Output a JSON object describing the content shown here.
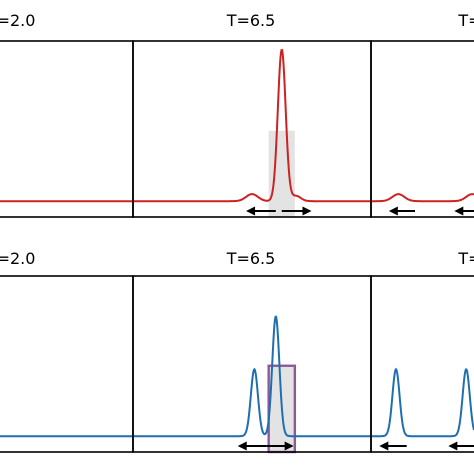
{
  "chart_data": [
    {
      "type": "line",
      "row": "top",
      "color": "#cc2222",
      "panels": [
        {
          "title": "=2.0",
          "bars": [
            {
              "x": 0.15,
              "w": 0.22,
              "h": 0.49,
              "outline": false
            }
          ],
          "baseline": 0.09,
          "peaks": [],
          "arrows": []
        },
        {
          "title": "T=6.5",
          "bars": [
            {
              "x": 1.25,
              "w": 0.22,
              "h": 0.49,
              "outline": false
            }
          ],
          "baseline": 0.09,
          "peaks": [
            {
              "x": 1.0,
              "h": 0.04,
              "s": 0.05
            },
            {
              "x": 1.25,
              "h": 0.86,
              "s": 0.033
            },
            {
              "x": 1.37,
              "h": 0.03,
              "s": 0.04
            }
          ],
          "arrows": [
            {
              "dir": "left",
              "from": 1.2,
              "to": 0.95
            },
            {
              "dir": "right",
              "from": 1.25,
              "to": 1.5
            }
          ]
        },
        {
          "title": "T=",
          "bars": [],
          "baseline": 0.09,
          "peaks": [
            {
              "x": 0.23,
              "h": 0.04,
              "s": 0.05
            },
            {
              "x": 0.85,
              "h": 0.04,
              "s": 0.05
            }
          ],
          "arrows": [
            {
              "dir": "left",
              "from": 0.37,
              "to": 0.15
            },
            {
              "dir": "left",
              "from": 0.9,
              "to": 0.7
            }
          ]
        }
      ]
    },
    {
      "type": "line",
      "row": "bottom",
      "color": "#1f6fb0",
      "panels": [
        {
          "title": "=2.0",
          "bars": [
            {
              "x": 0.12,
              "w": 0.22,
              "h": 0.49,
              "outline": true
            }
          ],
          "baseline": 0.09,
          "peaks": [],
          "arrows": []
        },
        {
          "title": "T=6.5",
          "bars": [
            {
              "x": 1.25,
              "w": 0.22,
              "h": 0.49,
              "outline": true
            }
          ],
          "baseline": 0.09,
          "peaks": [
            {
              "x": 1.02,
              "h": 0.38,
              "s": 0.03
            },
            {
              "x": 1.2,
              "h": 0.68,
              "s": 0.03
            }
          ],
          "arrows": [
            {
              "dir": "left",
              "from": 1.12,
              "to": 0.88
            },
            {
              "dir": "right",
              "from": 1.12,
              "to": 1.35
            }
          ]
        },
        {
          "title": "T=",
          "bars": [],
          "baseline": 0.09,
          "peaks": [
            {
              "x": 0.21,
              "h": 0.38,
              "s": 0.03
            },
            {
              "x": 0.8,
              "h": 0.38,
              "s": 0.03
            }
          ],
          "arrows": [
            {
              "dir": "left",
              "from": 0.3,
              "to": 0.07
            },
            {
              "dir": "left",
              "from": 0.88,
              "to": 0.65
            }
          ]
        }
      ]
    }
  ]
}
